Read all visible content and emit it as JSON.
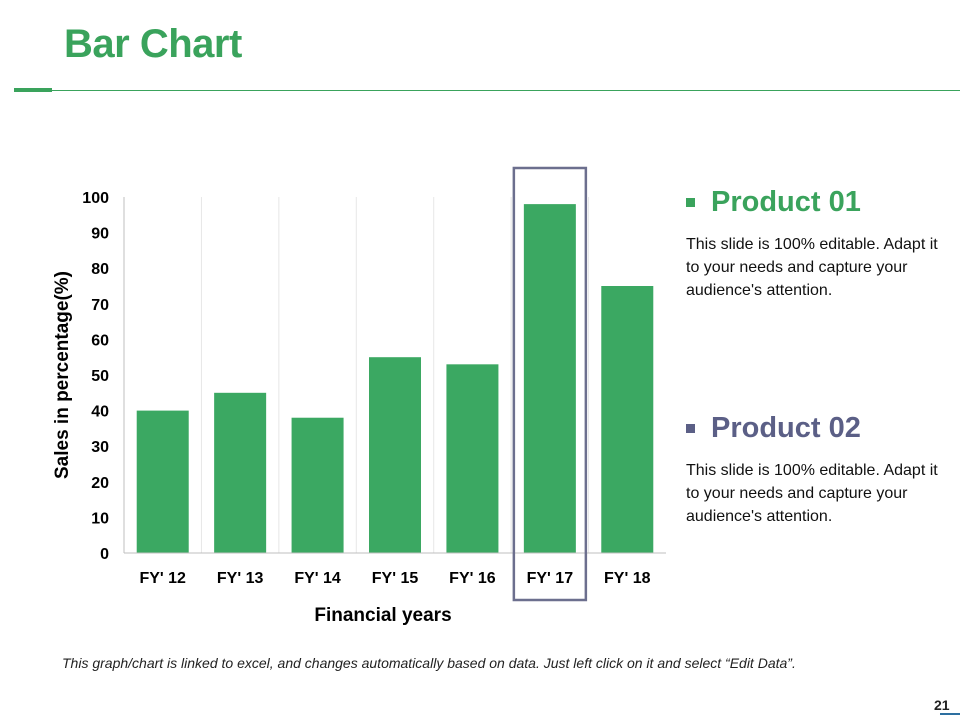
{
  "slide": {
    "title": "Bar Chart",
    "footnote": "This graph/chart is linked to excel, and changes automatically based on data. Just left click on it and select “Edit Data”.",
    "page_number": "21"
  },
  "colors": {
    "accent": "#3aa35c",
    "bar": "#3ba862",
    "highlight_border": "#6c6f8e",
    "product2": "#5b5f86"
  },
  "legend": [
    {
      "name": "Product 01",
      "description": "This slide is 100% editable. Adapt it to your needs and capture your audience's attention.",
      "color": "#3aa35c"
    },
    {
      "name": "Product 02",
      "description": "This slide is 100% editable. Adapt it to your needs and capture your audience's attention.",
      "color": "#5b5f86"
    }
  ],
  "chart_data": {
    "type": "bar",
    "categories": [
      "FY' 12",
      "FY' 13",
      "FY' 14",
      "FY' 15",
      "FY' 16",
      "FY' 17",
      "FY' 18"
    ],
    "values": [
      40,
      45,
      38,
      55,
      53,
      98,
      75
    ],
    "title": "",
    "xlabel": "Financial years",
    "ylabel": "Sales in percentage(%)",
    "ylim": [
      0,
      100
    ],
    "yticks": [
      "0",
      "10",
      "20",
      "30",
      "40",
      "50",
      "60",
      "70",
      "80",
      "90",
      "100"
    ],
    "highlighted_category": "FY' 17",
    "grid": "vertical"
  }
}
